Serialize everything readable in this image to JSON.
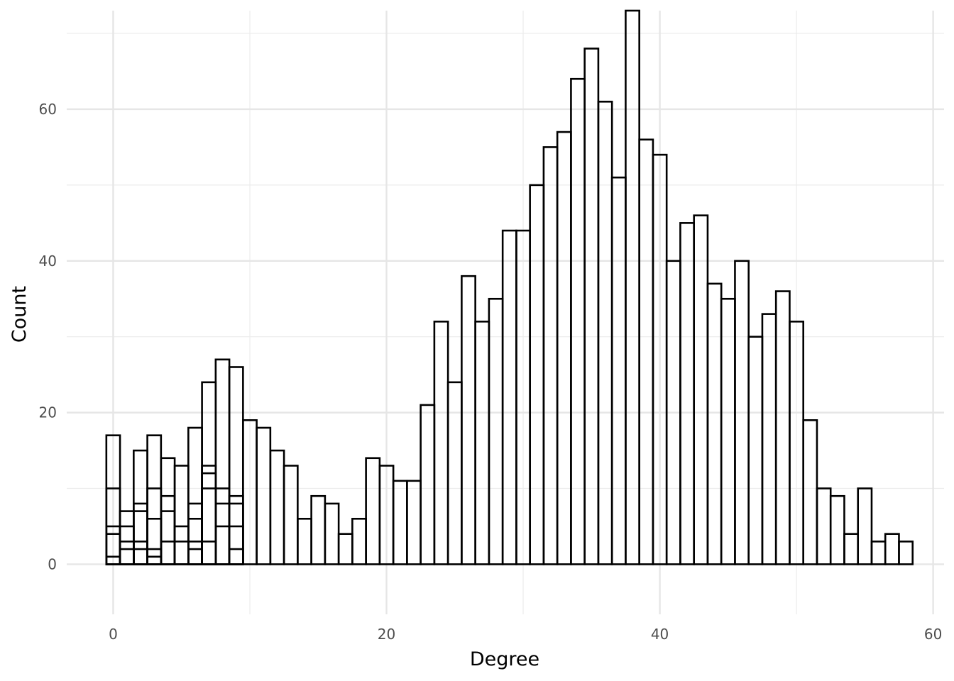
{
  "chart_data": {
    "type": "bar",
    "xlabel": "Degree",
    "ylabel": "Count",
    "xlim": [
      -3.4,
      60.8
    ],
    "ylim": [
      -6.6,
      73
    ],
    "x_ticks": [
      0,
      20,
      40,
      60
    ],
    "y_ticks": [
      0,
      20,
      40,
      60
    ],
    "grid": true,
    "bar_width": 1,
    "bars": [
      {
        "x": 0,
        "y": 17
      },
      {
        "x": 1,
        "y": 7
      },
      {
        "x": 2,
        "y": 15
      },
      {
        "x": 3,
        "y": 17
      },
      {
        "x": 4,
        "y": 14
      },
      {
        "x": 5,
        "y": 13
      },
      {
        "x": 6,
        "y": 18
      },
      {
        "x": 7,
        "y": 24
      },
      {
        "x": 8,
        "y": 27
      },
      {
        "x": 9,
        "y": 26
      },
      {
        "x": 10,
        "y": 19
      },
      {
        "x": 11,
        "y": 18
      },
      {
        "x": 12,
        "y": 15
      },
      {
        "x": 13,
        "y": 13
      },
      {
        "x": 14,
        "y": 6
      },
      {
        "x": 15,
        "y": 9
      },
      {
        "x": 16,
        "y": 8
      },
      {
        "x": 17,
        "y": 4
      },
      {
        "x": 18,
        "y": 6
      },
      {
        "x": 19,
        "y": 14
      },
      {
        "x": 20,
        "y": 13
      },
      {
        "x": 21,
        "y": 11
      },
      {
        "x": 22,
        "y": 11
      },
      {
        "x": 23,
        "y": 21
      },
      {
        "x": 24,
        "y": 32
      },
      {
        "x": 25,
        "y": 24
      },
      {
        "x": 26,
        "y": 38
      },
      {
        "x": 27,
        "y": 32
      },
      {
        "x": 28,
        "y": 35
      },
      {
        "x": 29,
        "y": 44
      },
      {
        "x": 30,
        "y": 44
      },
      {
        "x": 31,
        "y": 50
      },
      {
        "x": 32,
        "y": 55
      },
      {
        "x": 33,
        "y": 57
      },
      {
        "x": 34,
        "y": 64
      },
      {
        "x": 35,
        "y": 68
      },
      {
        "x": 36,
        "y": 61
      },
      {
        "x": 37,
        "y": 51
      },
      {
        "x": 38,
        "y": 73
      },
      {
        "x": 39,
        "y": 56
      },
      {
        "x": 40,
        "y": 54
      },
      {
        "x": 41,
        "y": 40
      },
      {
        "x": 42,
        "y": 45
      },
      {
        "x": 43,
        "y": 46
      },
      {
        "x": 44,
        "y": 37
      },
      {
        "x": 45,
        "y": 35
      },
      {
        "x": 46,
        "y": 40
      },
      {
        "x": 47,
        "y": 30
      },
      {
        "x": 48,
        "y": 33
      },
      {
        "x": 49,
        "y": 36
      },
      {
        "x": 50,
        "y": 32
      },
      {
        "x": 51,
        "y": 19
      },
      {
        "x": 52,
        "y": 10
      },
      {
        "x": 53,
        "y": 9
      },
      {
        "x": 54,
        "y": 4
      },
      {
        "x": 55,
        "y": 10
      },
      {
        "x": 56,
        "y": 3
      },
      {
        "x": 57,
        "y": 4
      },
      {
        "x": 58,
        "y": 3
      }
    ],
    "overlay_bars": [
      {
        "x": 0,
        "y": 10
      },
      {
        "x": 0,
        "y": 5
      },
      {
        "x": 0,
        "y": 4
      },
      {
        "x": 0,
        "y": 1
      },
      {
        "x": 1,
        "y": 5
      },
      {
        "x": 1,
        "y": 3
      },
      {
        "x": 1,
        "y": 2
      },
      {
        "x": 2,
        "y": 8
      },
      {
        "x": 2,
        "y": 7
      },
      {
        "x": 2,
        "y": 3
      },
      {
        "x": 2,
        "y": 2
      },
      {
        "x": 3,
        "y": 10
      },
      {
        "x": 3,
        "y": 6
      },
      {
        "x": 3,
        "y": 2
      },
      {
        "x": 3,
        "y": 1
      },
      {
        "x": 4,
        "y": 9
      },
      {
        "x": 4,
        "y": 7
      },
      {
        "x": 4,
        "y": 3
      },
      {
        "x": 5,
        "y": 5
      },
      {
        "x": 5,
        "y": 3
      },
      {
        "x": 6,
        "y": 8
      },
      {
        "x": 6,
        "y": 6
      },
      {
        "x": 6,
        "y": 3
      },
      {
        "x": 6,
        "y": 2
      },
      {
        "x": 7,
        "y": 13
      },
      {
        "x": 7,
        "y": 12
      },
      {
        "x": 7,
        "y": 10
      },
      {
        "x": 7,
        "y": 3
      },
      {
        "x": 8,
        "y": 10
      },
      {
        "x": 8,
        "y": 8
      },
      {
        "x": 8,
        "y": 5
      },
      {
        "x": 9,
        "y": 9
      },
      {
        "x": 9,
        "y": 8
      },
      {
        "x": 9,
        "y": 5
      },
      {
        "x": 9,
        "y": 2
      }
    ]
  }
}
